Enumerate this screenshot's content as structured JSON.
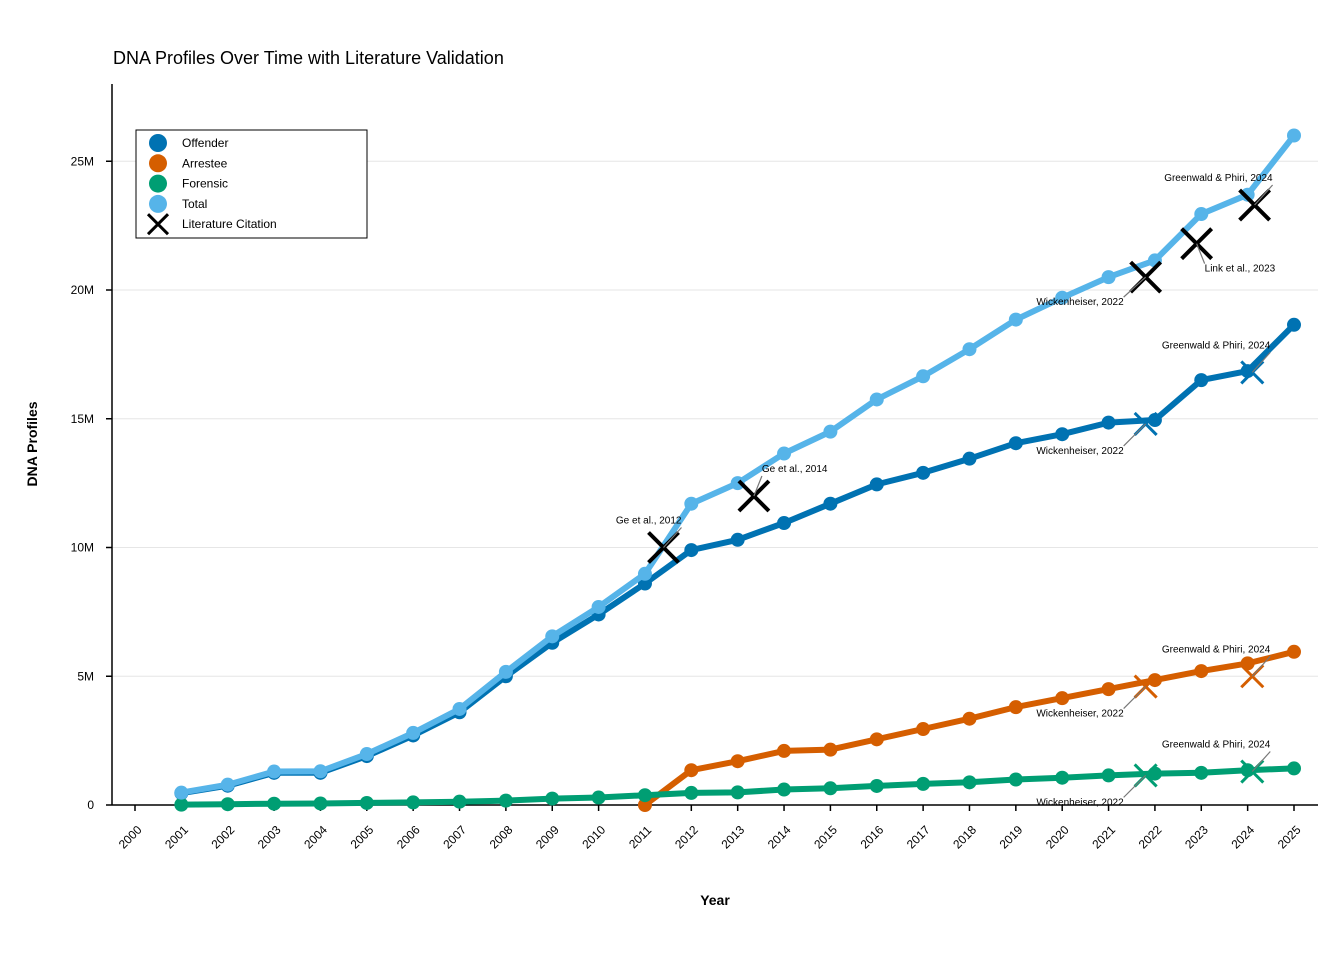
{
  "chart_data": {
    "type": "line",
    "title": "DNA Profiles Over Time with Literature Validation",
    "xlabel": "Year",
    "ylabel": "DNA Profiles",
    "x": [
      2000,
      2001,
      2002,
      2003,
      2004,
      2005,
      2006,
      2007,
      2008,
      2009,
      2010,
      2011,
      2012,
      2013,
      2014,
      2015,
      2016,
      2017,
      2018,
      2019,
      2020,
      2021,
      2022,
      2023,
      2024,
      2025
    ],
    "xticks": [
      "2000",
      "2001",
      "2002",
      "2003",
      "2004",
      "2005",
      "2006",
      "2007",
      "2008",
      "2009",
      "2010",
      "2011",
      "2012",
      "2013",
      "2014",
      "2015",
      "2016",
      "2017",
      "2018",
      "2019",
      "2020",
      "2021",
      "2022",
      "2023",
      "2024",
      "2025"
    ],
    "ylim": [
      0,
      28000000
    ],
    "yticks": [
      {
        "value": 0,
        "label": "0"
      },
      {
        "value": 5000000,
        "label": "5M"
      },
      {
        "value": 10000000,
        "label": "10M"
      },
      {
        "value": 15000000,
        "label": "15M"
      },
      {
        "value": 20000000,
        "label": "20M"
      },
      {
        "value": 25000000,
        "label": "25M"
      }
    ],
    "grid": "horizontal",
    "legend_position": "top-left",
    "series": [
      {
        "name": "Offender",
        "color": "#0072B2",
        "x": [
          2001,
          2002,
          2003,
          2004,
          2005,
          2006,
          2007,
          2008,
          2009,
          2010,
          2011,
          2012,
          2013,
          2014,
          2015,
          2016,
          2017,
          2018,
          2019,
          2020,
          2021,
          2022,
          2023,
          2024,
          2025
        ],
        "values": [
          460000,
          750000,
          1250000,
          1250000,
          1900000,
          2700000,
          3600000,
          5000000,
          6300000,
          7400000,
          8600000,
          9900000,
          10300000,
          10950000,
          11700000,
          12450000,
          12900000,
          13450000,
          14050000,
          14400000,
          14850000,
          14950000,
          16500000,
          16850000,
          18650000
        ]
      },
      {
        "name": "Arrestee",
        "color": "#D55E00",
        "x": [
          2011,
          2012,
          2013,
          2014,
          2015,
          2016,
          2017,
          2018,
          2019,
          2020,
          2021,
          2022,
          2023,
          2024,
          2025
        ],
        "values": [
          0,
          1350000,
          1700000,
          2100000,
          2150000,
          2550000,
          2950000,
          3350000,
          3800000,
          4150000,
          4500000,
          4850000,
          5200000,
          5500000,
          5950000
        ]
      },
      {
        "name": "Forensic",
        "color": "#009E73",
        "x": [
          2001,
          2002,
          2003,
          2004,
          2005,
          2006,
          2007,
          2008,
          2009,
          2010,
          2011,
          2012,
          2013,
          2014,
          2015,
          2016,
          2017,
          2018,
          2019,
          2020,
          2021,
          2022,
          2023,
          2024,
          2025
        ],
        "values": [
          15000,
          30000,
          50000,
          60000,
          80000,
          100000,
          130000,
          170000,
          250000,
          290000,
          380000,
          470000,
          490000,
          600000,
          650000,
          740000,
          820000,
          880000,
          990000,
          1060000,
          1150000,
          1220000,
          1250000,
          1350000,
          1420000
        ]
      },
      {
        "name": "Total",
        "color": "#56B4E9",
        "x": [
          2001,
          2002,
          2003,
          2004,
          2005,
          2006,
          2007,
          2008,
          2009,
          2010,
          2011,
          2012,
          2013,
          2014,
          2015,
          2016,
          2017,
          2018,
          2019,
          2020,
          2021,
          2022,
          2023,
          2024,
          2025
        ],
        "values": [
          480000,
          790000,
          1300000,
          1310000,
          1980000,
          2800000,
          3730000,
          5170000,
          6550000,
          7690000,
          8980000,
          11700000,
          12500000,
          13650000,
          14500000,
          15750000,
          16650000,
          17700000,
          18850000,
          19700000,
          20500000,
          21150000,
          22950000,
          23700000,
          26000000
        ]
      }
    ],
    "literature_legend": "Literature Citation",
    "citations": [
      {
        "x": 2011.4,
        "y": 10000000,
        "color": "#000000",
        "size": "large",
        "label": "Ge et al., 2012",
        "anchor": "end"
      },
      {
        "x": 2013.35,
        "y": 12000000,
        "color": "#000000",
        "size": "large",
        "label": "Ge et al., 2014",
        "anchor": "start"
      },
      {
        "x": 2021.8,
        "y": 20500000,
        "color": "#000000",
        "size": "large",
        "label": "Wickenheiser, 2022",
        "anchor": "end"
      },
      {
        "x": 2022.9,
        "y": 21800000,
        "color": "#000000",
        "size": "large",
        "label": "Link et al., 2023",
        "anchor": "start"
      },
      {
        "x": 2024.15,
        "y": 23300000,
        "color": "#000000",
        "size": "large",
        "label": "Greenwald & Phiri, 2024",
        "anchor": "end"
      },
      {
        "x": 2021.8,
        "y": 14800000,
        "color": "#0072B2",
        "size": "small",
        "label": "Wickenheiser, 2022",
        "anchor": "end"
      },
      {
        "x": 2024.1,
        "y": 16800000,
        "color": "#0072B2",
        "size": "small",
        "label": "Greenwald & Phiri, 2024",
        "anchor": "end"
      },
      {
        "x": 2021.8,
        "y": 4600000,
        "color": "#D55E00",
        "size": "small",
        "label": "Wickenheiser, 2022",
        "anchor": "end"
      },
      {
        "x": 2024.1,
        "y": 5000000,
        "color": "#D55E00",
        "size": "small",
        "label": "Greenwald & Phiri, 2024",
        "anchor": "end"
      },
      {
        "x": 2021.8,
        "y": 1150000,
        "color": "#009E73",
        "size": "small",
        "label": "Wickenheiser, 2022",
        "anchor": "end"
      },
      {
        "x": 2024.1,
        "y": 1300000,
        "color": "#009E73",
        "size": "small",
        "label": "Greenwald & Phiri, 2024",
        "anchor": "end"
      }
    ]
  }
}
